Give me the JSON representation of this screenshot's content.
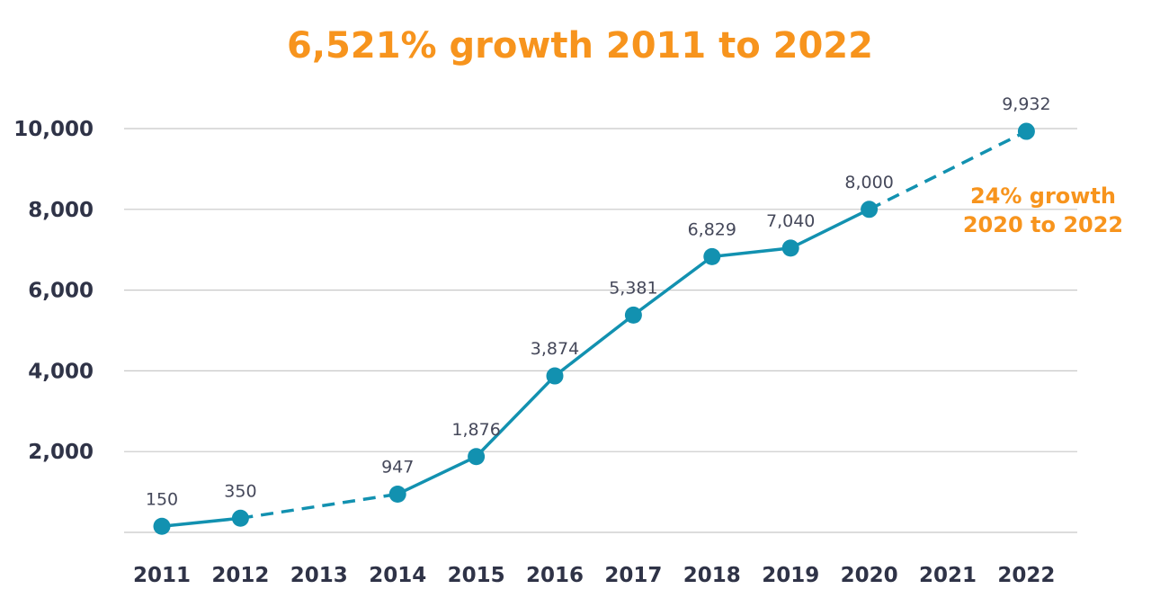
{
  "chart_data": {
    "type": "line",
    "title": "6,521% growth 2011 to 2022",
    "xlabel": "",
    "ylabel": "",
    "categories": [
      "2011",
      "2012",
      "2013",
      "2014",
      "2015",
      "2016",
      "2017",
      "2018",
      "2019",
      "2020",
      "2021",
      "2022"
    ],
    "series": [
      {
        "x": [
          2011,
          2012,
          2014,
          2015,
          2016,
          2017,
          2018,
          2019,
          2020,
          2022
        ],
        "values": [
          150,
          350,
          947,
          1876,
          3874,
          5381,
          6829,
          7040,
          8000,
          9932
        ],
        "labels": [
          "150",
          "350",
          "947",
          "1,876",
          "3,874",
          "5,381",
          "6,829",
          "7,040",
          "8,000",
          "9,932"
        ]
      }
    ],
    "dashed_segments": [
      [
        "2012",
        "2014"
      ],
      [
        "2020",
        "2022"
      ]
    ],
    "yticks": [
      2000,
      4000,
      6000,
      8000,
      10000
    ],
    "ytick_labels": [
      "2,000",
      "4,000",
      "6,000",
      "8,000",
      "10,000"
    ],
    "ylim": [
      0,
      10000
    ],
    "grid": true,
    "annotation": {
      "lines": [
        "24% growth",
        "2020 to 2022"
      ]
    },
    "colors": {
      "line": "#1291b0",
      "title": "#f7941d",
      "annotation": "#f7941d",
      "axis_text": "#2f3347",
      "grid": "#c8c8c8"
    }
  }
}
